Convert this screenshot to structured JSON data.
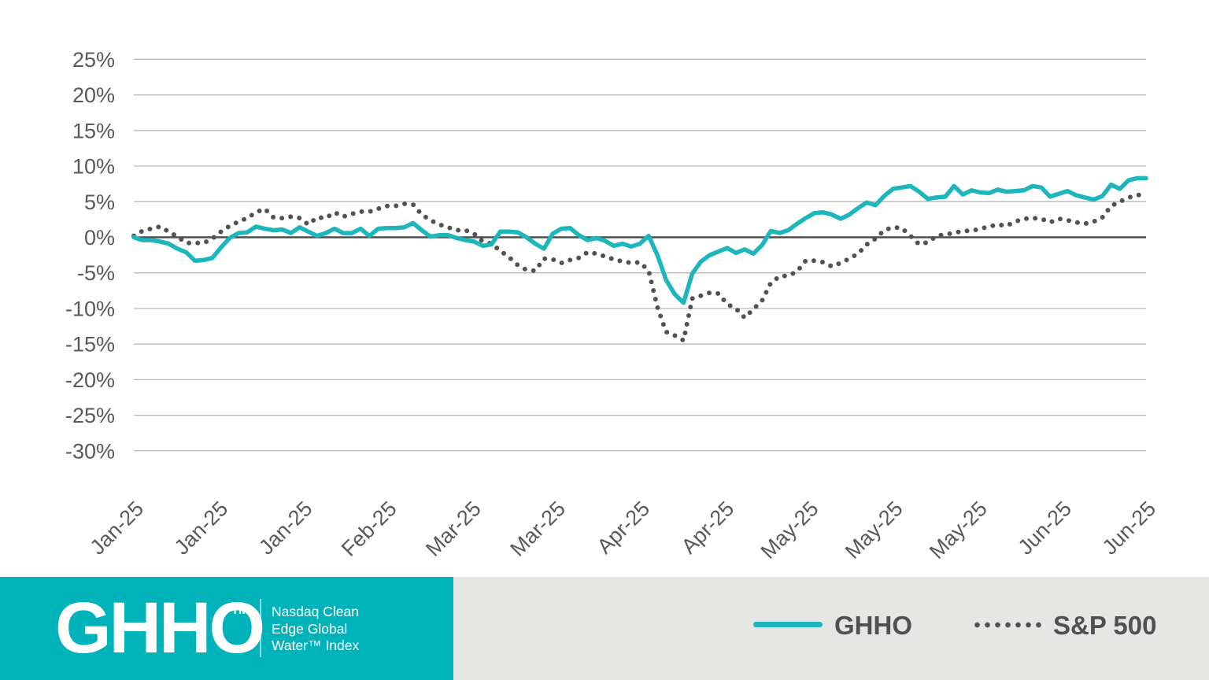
{
  "chart_data": {
    "type": "line",
    "title": "",
    "xlabel": "",
    "ylabel": "",
    "ylim": [
      -30,
      25
    ],
    "grid": true,
    "legend_position": "bottom",
    "grid_color": "#b3b3b3",
    "zero_line_color": "#4d4d4d",
    "tick_label_color": "#595959",
    "x_tick_labels": [
      "Jan-25",
      "Jan-25",
      "Jan-25",
      "Feb-25",
      "Mar-25",
      "Mar-25",
      "Apr-25",
      "Apr-25",
      "May-25",
      "May-25",
      "May-25",
      "Jun-25",
      "Jun-25"
    ],
    "y_ticks": [
      {
        "value": 25,
        "label": "25%"
      },
      {
        "value": 20,
        "label": "20%"
      },
      {
        "value": 15,
        "label": "15%"
      },
      {
        "value": 10,
        "label": "10%"
      },
      {
        "value": 5,
        "label": "5%"
      },
      {
        "value": 0,
        "label": "0%"
      },
      {
        "value": -5,
        "label": "-5%"
      },
      {
        "value": -10,
        "label": "-10%"
      },
      {
        "value": -15,
        "label": "-15%"
      },
      {
        "value": -20,
        "label": "-20%"
      },
      {
        "value": -25,
        "label": "-25%"
      },
      {
        "value": -30,
        "label": "-30%"
      }
    ],
    "series": [
      {
        "name": "S&P 500",
        "style": "dotted",
        "color": "#515254",
        "values": [
          0.2,
          0.9,
          1.2,
          1.5,
          0.8,
          0.1,
          -0.8,
          -0.8,
          -0.8,
          -0.2,
          0.8,
          1.6,
          2.2,
          2.7,
          3.5,
          4.0,
          2.8,
          2.7,
          2.9,
          2.7,
          1.8,
          2.8,
          2.7,
          3.5,
          2.9,
          3.3,
          3.6,
          3.6,
          4.0,
          4.4,
          4.4,
          4.7,
          4.6,
          3.2,
          2.4,
          1.8,
          1.4,
          1.0,
          1.0,
          0.5,
          -0.6,
          -0.9,
          -1.9,
          -2.8,
          -3.9,
          -4.6,
          -4.7,
          -3.0,
          -3.1,
          -3.6,
          -3.2,
          -2.9,
          -2.1,
          -2.3,
          -2.7,
          -3.1,
          -3.4,
          -3.6,
          -3.5,
          -4.7,
          -9.8,
          -13.3,
          -13.8,
          -14.5,
          -8.6,
          -8.2,
          -7.8,
          -7.9,
          -9.4,
          -10.0,
          -11.3,
          -10.1,
          -8.9,
          -6.4,
          -5.5,
          -5.4,
          -4.8,
          -3.3,
          -3.3,
          -3.5,
          -4.1,
          -3.6,
          -3.0,
          -2.3,
          -1.0,
          -0.2,
          1.0,
          1.4,
          1.3,
          0.2,
          -1.0,
          -0.7,
          0.2,
          0.4,
          0.6,
          0.9,
          0.9,
          1.2,
          1.5,
          1.8,
          1.6,
          2.2,
          2.6,
          2.7,
          2.6,
          2.1,
          2.6,
          2.4,
          2.1,
          1.9,
          2.2,
          2.8,
          4.4,
          5.0,
          5.6,
          5.9,
          6.1
        ]
      },
      {
        "name": "GHHO",
        "style": "solid",
        "color": "#1db6bd",
        "values": [
          0.0,
          -0.4,
          -0.4,
          -0.6,
          -0.9,
          -1.6,
          -2.1,
          -3.3,
          -3.2,
          -2.9,
          -1.4,
          -0.1,
          0.6,
          0.7,
          1.5,
          1.2,
          1.0,
          1.1,
          0.6,
          1.4,
          0.8,
          0.2,
          0.6,
          1.2,
          0.6,
          0.6,
          1.2,
          0.2,
          1.2,
          1.3,
          1.3,
          1.4,
          2.0,
          1.0,
          0.1,
          0.3,
          0.3,
          -0.1,
          -0.4,
          -0.6,
          -1.2,
          -1.0,
          0.8,
          0.8,
          0.7,
          0.0,
          -0.9,
          -1.6,
          0.5,
          1.2,
          1.3,
          0.3,
          -0.4,
          -0.1,
          -0.5,
          -1.2,
          -0.9,
          -1.3,
          -0.9,
          0.2,
          -2.5,
          -6.0,
          -8.0,
          -9.2,
          -5.1,
          -3.4,
          -2.5,
          -2.0,
          -1.5,
          -2.2,
          -1.7,
          -2.3,
          -1.1,
          0.9,
          0.6,
          1.0,
          1.9,
          2.7,
          3.4,
          3.5,
          3.2,
          2.6,
          3.2,
          4.1,
          4.9,
          4.5,
          5.8,
          6.8,
          7.0,
          7.2,
          6.4,
          5.4,
          5.6,
          5.7,
          7.2,
          6.0,
          6.6,
          6.3,
          6.2,
          6.7,
          6.4,
          6.5,
          6.6,
          7.2,
          7.0,
          5.7,
          6.1,
          6.5,
          5.9,
          5.6,
          5.3,
          5.8,
          7.4,
          6.8,
          8.0,
          8.3,
          8.3
        ]
      }
    ]
  },
  "footer": {
    "brand_color": "#00b2ba",
    "background_color": "#e6e6e5",
    "logo_text": "GHHO",
    "logo_tm": "TM",
    "tagline_lines": [
      "Nasdaq Clean",
      "Edge Global",
      "Water™ Index"
    ],
    "legend_text_color": "#4f5052"
  }
}
